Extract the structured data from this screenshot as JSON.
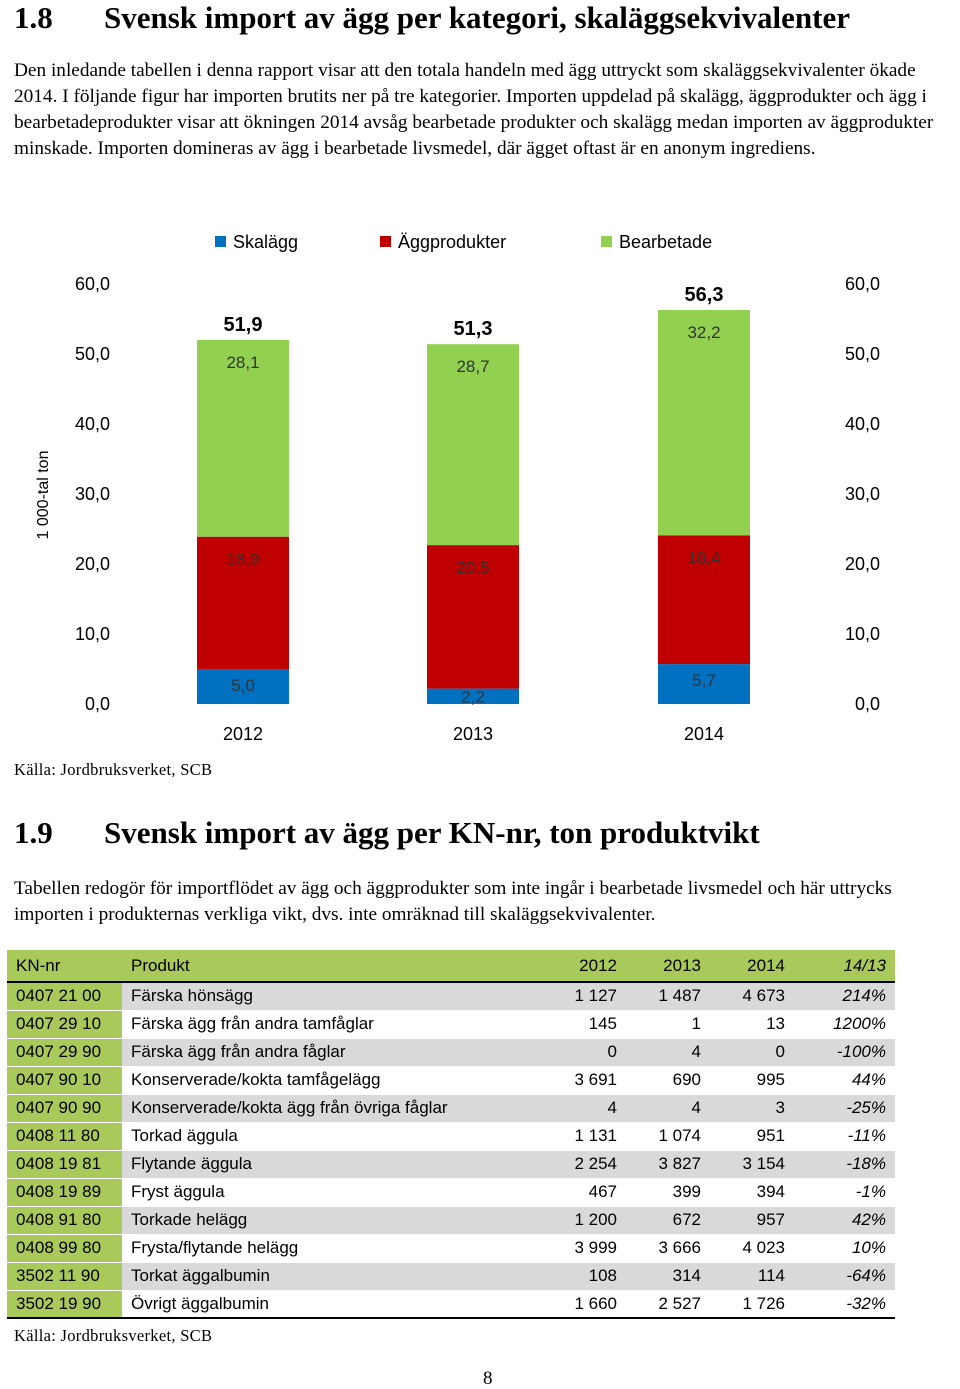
{
  "section1": {
    "number": "1.8",
    "title": "Svensk import av ägg per kategori, skaläggsekvivalenter",
    "paragraph": "Den inledande tabellen i denna rapport visar att den totala handeln med ägg uttryckt som skaläggsekvivalenter ökade 2014. I följande figur har importen brutits ner på tre kategorier. Importen uppdelad på skalägg, äggprodukter och ägg i bearbetadeprodukter visar att ökningen 2014 avsåg bearbetade produkter och skalägg medan importen av äggprodukter minskade. Importen domineras av ägg i bearbetade livsmedel, där ägget oftast är en anonym ingrediens.",
    "source": "Källa: Jordbruksverket, SCB"
  },
  "chart_data": {
    "type": "bar",
    "stacked": true,
    "categories": [
      "2012",
      "2013",
      "2014"
    ],
    "series": [
      {
        "name": "Skalägg",
        "color": "#0070c0",
        "values": [
          5.0,
          2.2,
          5.7
        ],
        "labels": [
          "5,0",
          "2,2",
          "5,7"
        ]
      },
      {
        "name": "Äggprodukter",
        "color": "#c00000",
        "values": [
          18.9,
          20.5,
          18.4
        ],
        "labels": [
          "18,9",
          "20,5",
          "18,4"
        ]
      },
      {
        "name": "Bearbetade",
        "color": "#92d050",
        "values": [
          28.1,
          28.7,
          32.2
        ],
        "labels": [
          "28,1",
          "28,7",
          "32,2"
        ]
      }
    ],
    "totals": [
      51.9,
      51.3,
      56.3
    ],
    "total_labels": [
      "51,9",
      "51,3",
      "56,3"
    ],
    "ylabel": "1 000-tal ton",
    "ylim": [
      0,
      60
    ],
    "yticks": [
      "0,0",
      "10,0",
      "20,0",
      "30,0",
      "40,0",
      "50,0",
      "60,0"
    ],
    "secondary_axis": true,
    "legend": "top",
    "grid": false
  },
  "section2": {
    "number": "1.9",
    "title": "Svensk import av ägg per KN-nr, ton produktvikt",
    "paragraph": "Tabellen redogör för importflödet av ägg och äggprodukter som inte ingår i bearbetade livsmedel och här uttrycks importen i produkternas verkliga vikt, dvs. inte omräknad till skaläggsekvivalenter.",
    "source": "Källa: Jordbruksverket, SCB"
  },
  "table": {
    "headers": [
      "KN-nr",
      "Produkt",
      "2012",
      "2013",
      "2014",
      "14/13"
    ],
    "rows": [
      [
        "0407 21 00",
        "Färska hönsägg",
        "1 127",
        "1 487",
        "4 673",
        "214%"
      ],
      [
        "0407 29 10",
        "Färska ägg från andra tamfåglar",
        "145",
        "1",
        "13",
        "1200%"
      ],
      [
        "0407 29 90",
        "Färska ägg från andra fåglar",
        "0",
        "4",
        "0",
        "-100%"
      ],
      [
        "0407 90 10",
        "Konserverade/kokta tamfågelägg",
        "3 691",
        "690",
        "995",
        "44%"
      ],
      [
        "0407 90 90",
        "Konserverade/kokta ägg från övriga fåglar",
        "4",
        "4",
        "3",
        "-25%"
      ],
      [
        "0408 11 80",
        "Torkad äggula",
        "1 131",
        "1 074",
        "951",
        "-11%"
      ],
      [
        "0408 19 81",
        "Flytande äggula",
        "2 254",
        "3 827",
        "3 154",
        "-18%"
      ],
      [
        "0408 19 89",
        "Fryst äggula",
        "467",
        "399",
        "394",
        "-1%"
      ],
      [
        "0408 91 80",
        "Torkade helägg",
        "1 200",
        "672",
        "957",
        "42%"
      ],
      [
        "0408 99 80",
        "Frysta/flytande helägg",
        "3 999",
        "3 666",
        "4 023",
        "10%"
      ],
      [
        "3502 11 90",
        "Torkat äggalbumin",
        "108",
        "314",
        "114",
        "-64%"
      ],
      [
        "3502 19 90",
        "Övrigt äggalbumin",
        "1 660",
        "2 527",
        "1 726",
        "-32%"
      ]
    ]
  },
  "page_number": "8"
}
